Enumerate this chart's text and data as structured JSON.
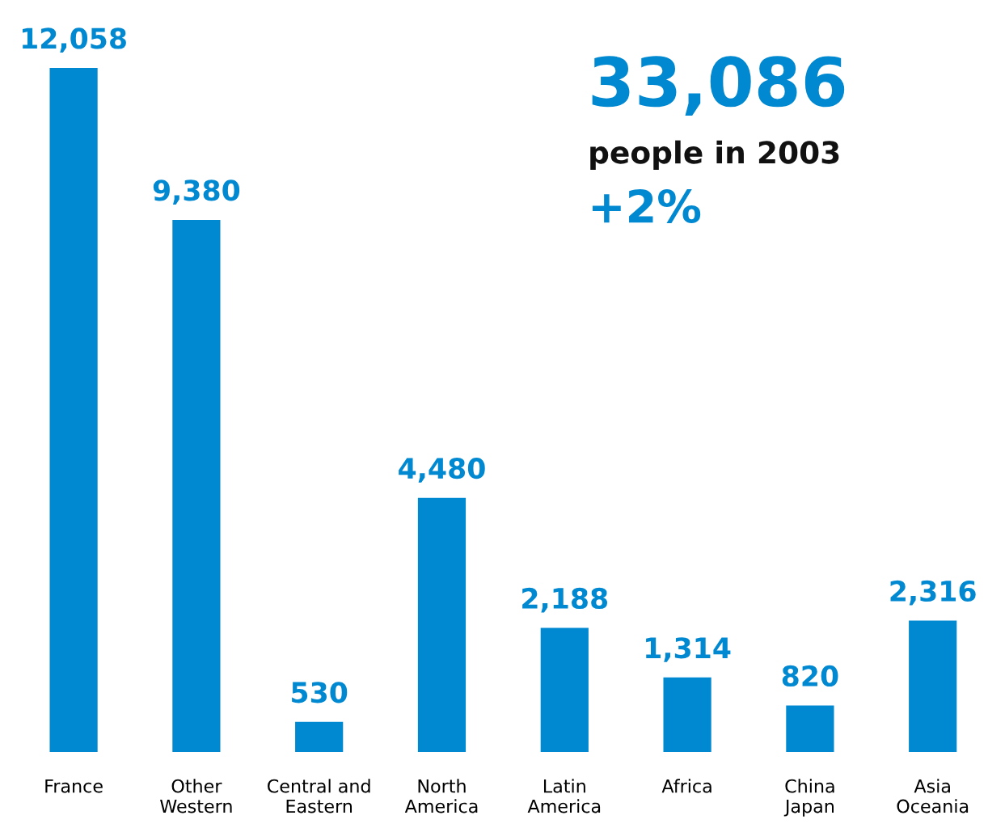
{
  "chart_data": {
    "type": "bar",
    "value_labels": [
      "12,058",
      "9,380",
      "530",
      "4,480",
      "2,188",
      "1,314",
      "820",
      "2,316"
    ],
    "categories": [
      "France",
      "Other\nWestern",
      "Central and\nEastern",
      "North\nAmerica",
      "Latin\nAmerica",
      "Africa",
      "China\nJapan",
      "Asia\nOceania"
    ],
    "values": [
      12058,
      9380,
      530,
      4480,
      2188,
      1314,
      820,
      2316
    ],
    "color": "#0088d1",
    "grid": false,
    "legend": false,
    "annotations": [
      "33,086",
      "people in 2003",
      "+2%"
    ]
  }
}
